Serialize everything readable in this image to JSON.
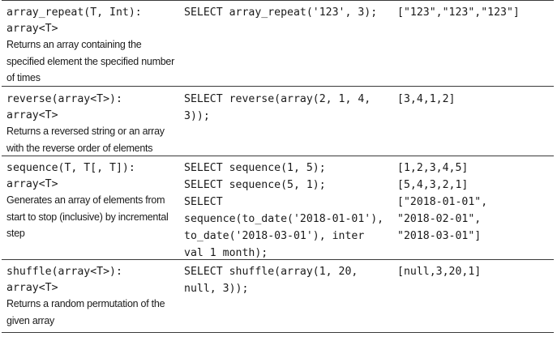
{
  "rows": [
    {
      "signature": [
        "array_repeat(T, Int):",
        "array<T>"
      ],
      "description": [
        "Returns an array containing the",
        "specified element the specified number",
        "of times"
      ],
      "example": [
        "SELECT array_repeat('123', 3);"
      ],
      "result": [
        "[\"123\",\"123\",\"123\"]"
      ]
    },
    {
      "signature": [
        "reverse(array<T>):",
        "array<T>"
      ],
      "description": [
        "Returns a reversed string or an array",
        "with the reverse order of elements"
      ],
      "example": [
        "SELECT reverse(array(2, 1, 4,",
        "3));"
      ],
      "result": [
        "[3,4,1,2]"
      ]
    },
    {
      "signature": [
        "sequence(T, T[, T]):",
        "array<T>"
      ],
      "description": [
        "Generates an array of elements from",
        "start to stop (inclusive) by incremental",
        "step"
      ],
      "example": [
        "SELECT sequence(1, 5);",
        "SELECT sequence(5, 1);",
        "SELECT",
        "sequence(to_date('2018-01-01'),",
        "to_date('2018-03-01'), inter",
        "val 1 month);"
      ],
      "result": [
        "[1,2,3,4,5]",
        "[5,4,3,2,1]",
        "[\"2018-01-01\",",
        "\"2018-02-01\",",
        "\"2018-03-01\"]"
      ]
    },
    {
      "signature": [
        "shuffle(array<T>):",
        "array<T>"
      ],
      "description": [
        "Returns a random permutation of the",
        "given array"
      ],
      "example": [
        "SELECT shuffle(array(1, 20,",
        "null, 3));"
      ],
      "result": [
        "[null,3,20,1]"
      ]
    }
  ]
}
